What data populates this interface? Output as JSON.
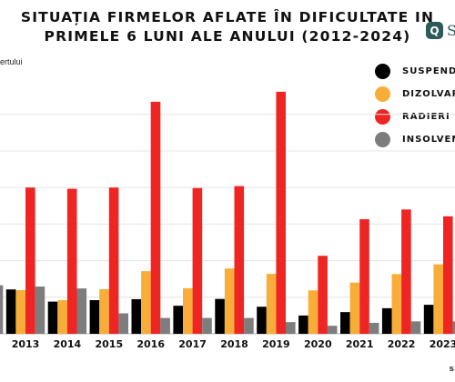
{
  "chart_data": {
    "type": "bar",
    "title_line1": "SITUAȚIA FIRMELOR AFLATE ÎN DIFICULTATE IN",
    "title_line2": "PRIMELE 6 LUNI ALE ANULUI (2012-2024)",
    "unit_label": "ertului",
    "categories": [
      "2013",
      "2014",
      "2015",
      "2016",
      "2017",
      "2018",
      "2019",
      "2020",
      "2021",
      "2022",
      "2023"
    ],
    "series": [
      {
        "name": "SUSPENDARI",
        "color": "#000000",
        "values": [
          1820,
          1320,
          1380,
          1420,
          1150,
          1430,
          1110,
          750,
          890,
          1050,
          1190
        ]
      },
      {
        "name": "DIZOLVARI",
        "color": "#f8ad38",
        "values": [
          1790,
          1380,
          1830,
          2570,
          1870,
          2680,
          2460,
          1780,
          2100,
          2450,
          2850
        ]
      },
      {
        "name": "RADIERI",
        "color": "#ef2524",
        "values": [
          6000,
          5950,
          6000,
          9520,
          5980,
          6060,
          9930,
          3200,
          4700,
          5100,
          4820
        ]
      },
      {
        "name": "INSOLVENTI",
        "color": "#7d7d7d",
        "values": [
          1940,
          1860,
          840,
          650,
          650,
          650,
          480,
          330,
          450,
          510,
          510
        ]
      }
    ],
    "ylim": [
      0,
      10000
    ],
    "gridlines": [
      0,
      1500,
      3000,
      4500,
      6000,
      7500,
      9000
    ],
    "grid": true,
    "legend_position": "right",
    "partial_bars": {
      "left_insolventi_2012": 1990,
      "right_dizolvari_2024": 2100,
      "right_insolventi_2024": 500
    }
  },
  "logo": {
    "mark": "Q",
    "text": "S"
  },
  "footer_fragment": "s"
}
